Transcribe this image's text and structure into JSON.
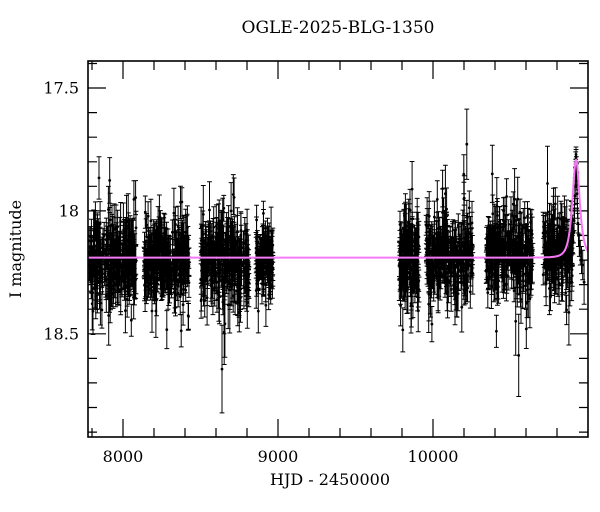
{
  "figure": {
    "title": "OGLE-2025-BLG-1350",
    "x_axis_label": "HJD - 2450000",
    "y_axis_label": "I magnitude",
    "background_color": "#ffffff",
    "frame_color": "#000000",
    "point_color": "#000000",
    "model_color": "#f678f6"
  },
  "chart_data": {
    "type": "scatter",
    "title": "OGLE-2025-BLG-1350",
    "xlabel": "HJD - 2450000",
    "ylabel": "I magnitude",
    "xlim": [
      7774,
      11000
    ],
    "ylim": [
      18.92,
      17.39
    ],
    "y_axis_inverted": true,
    "grid": false,
    "legend": null,
    "xticks_major": [
      8000,
      9000,
      10000
    ],
    "xtick_minor_step": 200,
    "yticks_major": [
      17.5,
      18,
      18.5
    ],
    "ytick_minor_step": 0.1,
    "baseline_mag": 18.19,
    "point_color": "#000000",
    "seasons": [
      {
        "hjd_start": 7781,
        "hjd_end": 8084,
        "n_points": 330,
        "mean_mag": 18.21,
        "mag_scatter": 0.07,
        "base_err": 0.045
      },
      {
        "hjd_start": 8135,
        "hjd_end": 8426,
        "n_points": 320,
        "mean_mag": 18.21,
        "mag_scatter": 0.07,
        "base_err": 0.045
      },
      {
        "hjd_start": 8503,
        "hjd_end": 8813,
        "n_points": 330,
        "mean_mag": 18.2,
        "mag_scatter": 0.07,
        "base_err": 0.045
      },
      {
        "hjd_start": 8858,
        "hjd_end": 8968,
        "n_points": 130,
        "mean_mag": 18.2,
        "mag_scatter": 0.06,
        "base_err": 0.042
      },
      {
        "hjd_start": 9781,
        "hjd_end": 9910,
        "n_points": 170,
        "mean_mag": 18.19,
        "mag_scatter": 0.08,
        "base_err": 0.048
      },
      {
        "hjd_start": 9955,
        "hjd_end": 10258,
        "n_points": 290,
        "mean_mag": 18.18,
        "mag_scatter": 0.075,
        "base_err": 0.045
      },
      {
        "hjd_start": 10342,
        "hjd_end": 10645,
        "n_points": 290,
        "mean_mag": 18.17,
        "mag_scatter": 0.075,
        "base_err": 0.045
      },
      {
        "hjd_start": 10710,
        "hjd_end": 10900,
        "n_points": 190,
        "mean_mag": 18.17,
        "mag_scatter": 0.065,
        "base_err": 0.045
      }
    ],
    "event_points": [
      {
        "hjd": 10903.5,
        "mag": 18.13,
        "err": 0.045
      },
      {
        "hjd": 10907.0,
        "mag": 18.09,
        "err": 0.04
      },
      {
        "hjd": 10910.0,
        "mag": 18.04,
        "err": 0.04
      },
      {
        "hjd": 10913.0,
        "mag": 17.99,
        "err": 0.04
      },
      {
        "hjd": 10915.5,
        "mag": 17.94,
        "err": 0.035
      },
      {
        "hjd": 10917.5,
        "mag": 17.9,
        "err": 0.035
      },
      {
        "hjd": 10919.0,
        "mag": 17.86,
        "err": 0.035
      },
      {
        "hjd": 10920.5,
        "mag": 17.82,
        "err": 0.03
      },
      {
        "hjd": 10921.5,
        "mag": 17.79,
        "err": 0.03
      },
      {
        "hjd": 10922.5,
        "mag": 17.77,
        "err": 0.03
      },
      {
        "hjd": 10923.5,
        "mag": 17.78,
        "err": 0.03
      },
      {
        "hjd": 10924.5,
        "mag": 17.81,
        "err": 0.03
      },
      {
        "hjd": 10926.0,
        "mag": 17.84,
        "err": 0.035
      },
      {
        "hjd": 10927.5,
        "mag": 17.88,
        "err": 0.035
      },
      {
        "hjd": 10929.5,
        "mag": 17.93,
        "err": 0.04
      },
      {
        "hjd": 10932.0,
        "mag": 17.99,
        "err": 0.04
      },
      {
        "hjd": 10935.0,
        "mag": 18.05,
        "err": 0.04
      },
      {
        "hjd": 10939.0,
        "mag": 18.1,
        "err": 0.045
      },
      {
        "hjd": 10944.0,
        "mag": 18.14,
        "err": 0.045
      },
      {
        "hjd": 10950.0,
        "mag": 18.17,
        "err": 0.05
      },
      {
        "hjd": 10958.0,
        "mag": 18.2,
        "err": 0.055
      },
      {
        "hjd": 10966.0,
        "mag": 18.22,
        "err": 0.06
      },
      {
        "hjd": 10975.0,
        "mag": 18.29,
        "err": 0.09
      }
    ],
    "model_curve": {
      "type": "paczynski-microlensing",
      "t0": 10923,
      "tE": 30,
      "u0": 0.88,
      "baseline_mag": 18.19,
      "peak_mag": 17.79,
      "color": "#f678f6"
    }
  }
}
